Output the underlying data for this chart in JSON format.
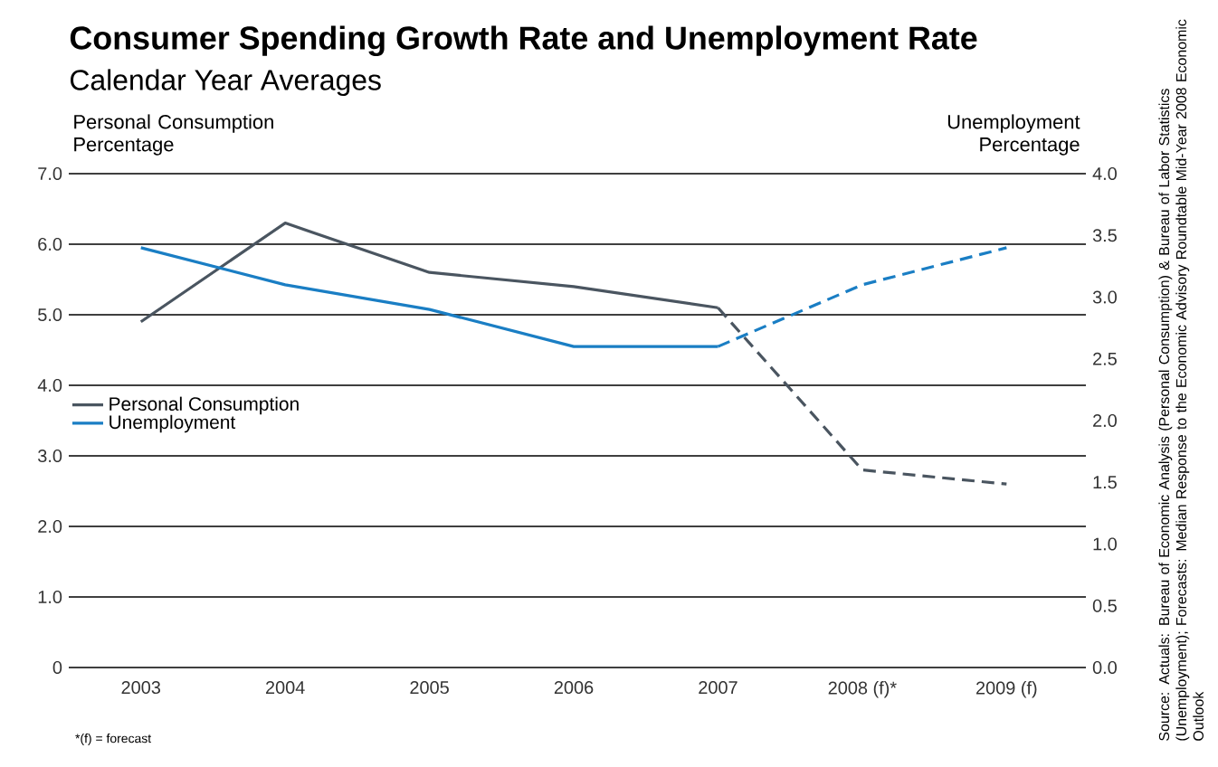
{
  "chart_data": {
    "type": "line",
    "title": "Consumer Spending Growth Rate and Unemployment Rate",
    "subtitle": "Calendar Year Averages",
    "ylabel": "Personal Consumption Percentage",
    "y2label": "Unemployment Percentage",
    "categories": [
      "2003",
      "2004",
      "2005",
      "2006",
      "2007",
      "2008 (f)*",
      "2009 (f)"
    ],
    "series": [
      {
        "name": "Personal Consumption",
        "color": "#4a5560",
        "line_style": "solid",
        "values": [
          4.9,
          6.3,
          5.6,
          5.4,
          5.1,
          null,
          null
        ]
      },
      {
        "color": "#4a5560",
        "line_style": "dashed",
        "values": [
          null,
          null,
          null,
          null,
          5.1,
          2.8,
          2.6
        ]
      },
      {
        "name": "Unemployment",
        "color": "#1a7ec4",
        "line_style": "solid",
        "axis": "y2",
        "values": [
          3.4,
          3.1,
          2.9,
          2.6,
          2.6,
          null,
          null
        ]
      },
      {
        "color": "#1a7ec4",
        "line_style": "dashed",
        "axis": "y2",
        "values": [
          null,
          null,
          null,
          null,
          2.6,
          3.1,
          3.4
        ]
      }
    ],
    "ylim": [
      0,
      7
    ],
    "yticks": [
      0,
      {
        "value": 1,
        "label": "1.0"
      },
      {
        "value": 2,
        "label": "2.0"
      },
      {
        "value": 3,
        "label": "3.0"
      },
      {
        "value": 4,
        "label": "4.0"
      },
      {
        "value": 5,
        "label": "5.0"
      },
      {
        "value": 6,
        "label": "6.0"
      },
      {
        "value": 7,
        "label": "7.0"
      }
    ],
    "y2lim": [
      0,
      4
    ],
    "y2ticks": [
      {
        "value": 0,
        "label": "0.0"
      },
      {
        "value": 0.5,
        "label": "0.5"
      },
      {
        "value": 1,
        "label": "1.0"
      },
      {
        "value": 1.5,
        "label": "1.5"
      },
      {
        "value": 2,
        "label": "2.0"
      },
      {
        "value": 2.5,
        "label": "2.5"
      },
      {
        "value": 3,
        "label": "3.0"
      },
      {
        "value": 3.5,
        "label": "3.5"
      },
      {
        "value": 4,
        "label": "4.0"
      }
    ],
    "grid": "y",
    "legend": "left",
    "annotations": [
      "*(f) = forecast",
      "Source: Actuals: Bureau of Economic Analysis (Personal Consumption) & Bureau of Labor Statistics (Unemployment); Forecasts: Median Response to the Economic Advisory Roundtable Mid-Year 2008 Economic Outlook"
    ]
  }
}
